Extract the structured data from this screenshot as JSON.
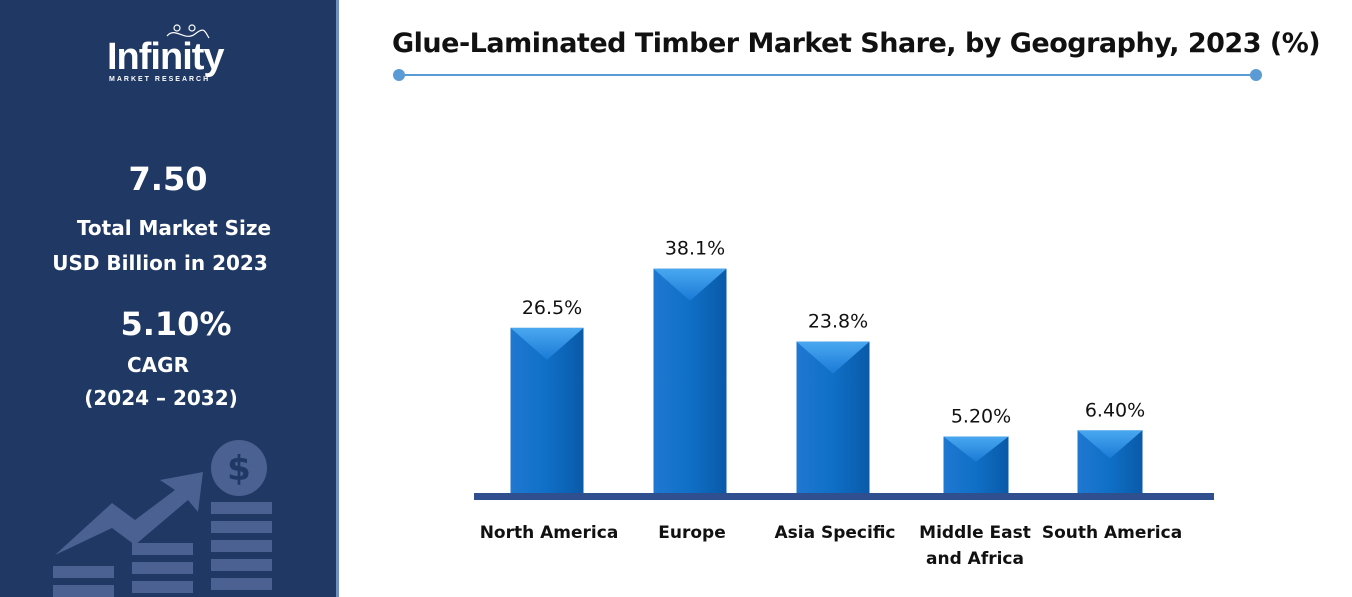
{
  "sidebar": {
    "logo_text": "Infinity",
    "logo_sub": "MARKET RESEARCH",
    "market_size": "7.50",
    "market_size_label1": "Total Market Size",
    "market_size_label2": "USD Billion in 2023",
    "cagr": "5.10%",
    "cagr_label": "CAGR",
    "cagr_period": "(2024 – 2032)",
    "icon": "growth-chart-dollar-icon"
  },
  "colors": {
    "sidebar": "#203864",
    "bar": "#0f6fc6",
    "axis": "#2f4f8f",
    "accent": "#5b9bd5"
  },
  "chart_data": {
    "type": "bar",
    "title": "Glue-Laminated Timber Market Share, by Geography, 2023 (%)",
    "categories": [
      "North America",
      "Europe",
      "Asia Specific",
      "Middle East and Africa",
      "South America"
    ],
    "category_lines": [
      [
        "North America"
      ],
      [
        "Europe"
      ],
      [
        "Asia Specific"
      ],
      [
        "Middle East",
        "and Africa"
      ],
      [
        "South America"
      ]
    ],
    "values": [
      26.5,
      38.1,
      23.8,
      5.2,
      6.4
    ],
    "data_labels": [
      "26.5%",
      "38.1%",
      "23.8%",
      "5.20%",
      "6.40%"
    ],
    "grid": false
  }
}
